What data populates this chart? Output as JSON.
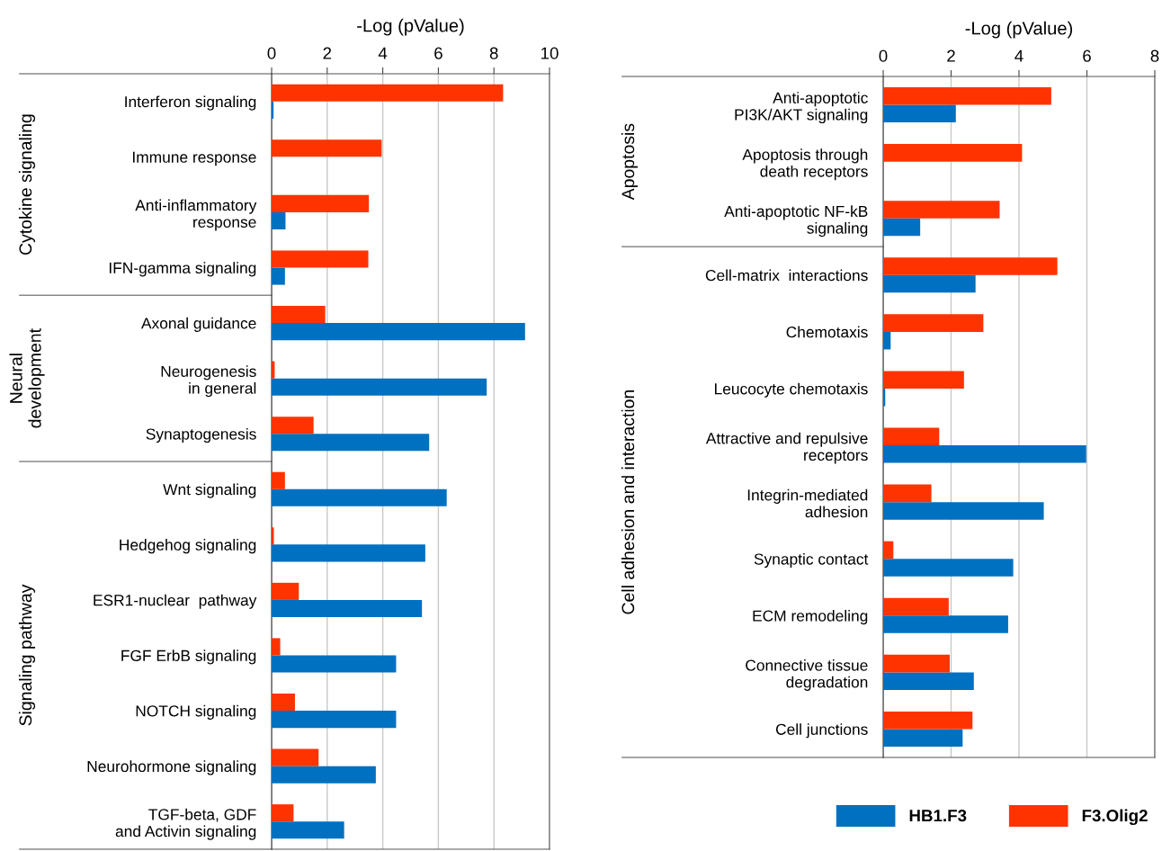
{
  "chart_data": [
    {
      "type": "bar",
      "orientation": "horizontal",
      "xlabel": "-Log (pValue)",
      "xlim": [
        0,
        10
      ],
      "xticks": [
        0,
        2,
        4,
        6,
        8,
        10
      ],
      "grid": "x",
      "legend": false,
      "categories": [
        "Interferon signaling",
        "Immune response",
        "Anti-inflammatory\nresponse",
        "IFN-gamma signaling",
        "Axonal guidance",
        "Neurogenesis\nin general",
        "Synaptogenesis",
        "Wnt signaling",
        "Hedgehog signaling",
        "ESR1-nuclear  pathway",
        "FGF ErbB signaling",
        "NOTCH signaling",
        "Neurohormone signaling",
        "TGF-beta, GDF\nand Activin signaling"
      ],
      "series": [
        {
          "color": "#0070c0",
          "values": [
            0.07,
            null,
            0.5,
            0.48,
            9.12,
            7.74,
            5.67,
            6.3,
            5.53,
            5.41,
            4.48,
            4.48,
            3.75,
            2.61
          ]
        },
        {
          "color": "#ff3300",
          "values": [
            8.33,
            3.96,
            3.5,
            3.48,
            1.93,
            0.11,
            1.51,
            0.48,
            0.08,
            0.98,
            0.31,
            0.84,
            1.69,
            0.79
          ]
        }
      ],
      "annotations": [
        "Cytokine signaling",
        "Neural\ndevelopment",
        "Signaling pathway"
      ]
    },
    {
      "type": "bar",
      "orientation": "horizontal",
      "xlabel": "-Log (pValue)",
      "xlim": [
        0,
        8
      ],
      "xticks": [
        0,
        2,
        4,
        6,
        8
      ],
      "grid": "x",
      "legend": "bottom",
      "categories": [
        "Anti-apoptotic\nPI3K/AKT signaling",
        "Apoptosis through\ndeath receptors",
        "Anti-apoptotic NF-kB\nsignaling",
        "Cell-matrix  interactions",
        "Chemotaxis",
        "Leucocyte chemotaxis",
        "Attractive and repulsive\nreceptors",
        "Integrin-mediated\nadhesion",
        "Synaptic contact",
        "ECM remodeling",
        "Connective tissue\ndegradation",
        "Cell junctions"
      ],
      "series": [
        {
          "name": "HB1.F3",
          "color": "#0070c0",
          "values": [
            2.14,
            null,
            1.09,
            2.72,
            0.22,
            0.06,
            5.98,
            4.73,
            3.83,
            3.68,
            2.67,
            2.34
          ]
        },
        {
          "name": "F3.Olig2",
          "color": "#ff3300",
          "values": [
            4.95,
            4.09,
            3.43,
            5.13,
            2.95,
            2.38,
            1.65,
            1.42,
            0.3,
            1.93,
            1.96,
            2.63
          ]
        }
      ],
      "annotations": [
        "Apoptosis",
        "Cell adhesion and interaction"
      ]
    }
  ]
}
